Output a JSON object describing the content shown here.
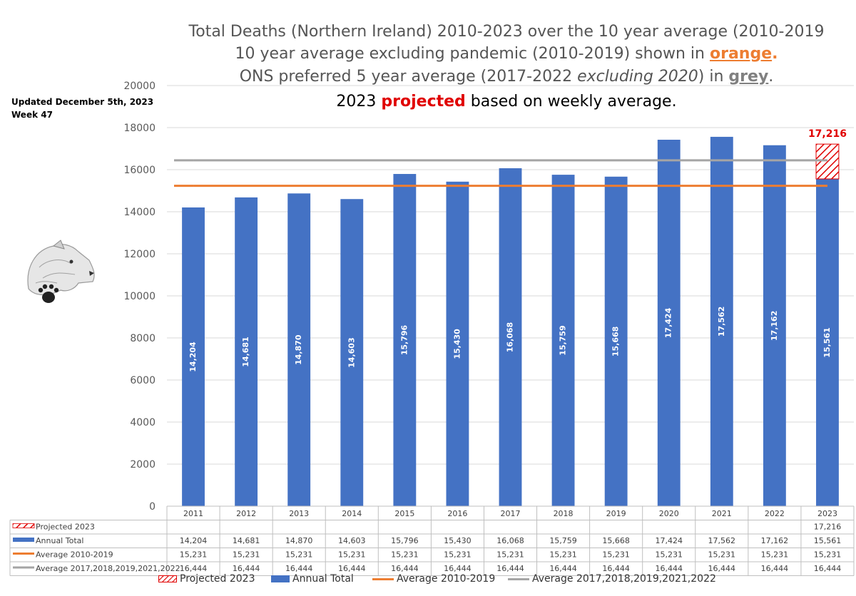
{
  "title": {
    "line1": "Total Deaths (Northern Ireland) 2010-2023 over the 10 year average (2010-2019",
    "line2_prefix": "10 year average excluding pandemic (2010-2019) shown in ",
    "line2_highlight": "orange",
    "line2_suffix": ".",
    "line3_prefix": "ONS preferred 5 year average (2017-2022 ",
    "line3_italic": "excluding 2020",
    "line3_mid": ") in ",
    "line3_highlight": "grey",
    "line3_suffix": ".",
    "line4_prefix": "2023 ",
    "line4_highlight": "projected",
    "line4_suffix": " based on weekly average."
  },
  "updated": {
    "line1": "Updated December 5th, 2023",
    "line2": "Week 47"
  },
  "colors": {
    "bar": "#4472c4",
    "orange_line": "#ed7d31",
    "grey_line": "#a5a5a5",
    "projected": "#e00000"
  },
  "chart_data": {
    "type": "bar",
    "categories": [
      "2011",
      "2012",
      "2013",
      "2014",
      "2015",
      "2016",
      "2017",
      "2018",
      "2019",
      "2020",
      "2021",
      "2022",
      "2023"
    ],
    "series": [
      {
        "name": "Projected 2023",
        "values": [
          null,
          null,
          null,
          null,
          null,
          null,
          null,
          null,
          null,
          null,
          null,
          null,
          17216
        ],
        "labels": [
          "",
          "",
          "",
          "",
          "",
          "",
          "",
          "",
          "",
          "",
          "",
          "",
          "17,216"
        ]
      },
      {
        "name": "Annual Total",
        "values": [
          14204,
          14681,
          14870,
          14603,
          15796,
          15430,
          16068,
          15759,
          15668,
          17424,
          17562,
          17162,
          15561
        ],
        "labels": [
          "14,204",
          "14,681",
          "14,870",
          "14,603",
          "15,796",
          "15,430",
          "16,068",
          "15,759",
          "15,668",
          "17,424",
          "17,562",
          "17,162",
          "15,561"
        ]
      },
      {
        "name": "Average 2010-2019",
        "values": [
          15231,
          15231,
          15231,
          15231,
          15231,
          15231,
          15231,
          15231,
          15231,
          15231,
          15231,
          15231,
          15231
        ],
        "labels": [
          "15,231",
          "15,231",
          "15,231",
          "15,231",
          "15,231",
          "15,231",
          "15,231",
          "15,231",
          "15,231",
          "15,231",
          "15,231",
          "15,231",
          "15,231"
        ]
      },
      {
        "name": "Average 2017,2018,2019,2021,2022",
        "values": [
          16444,
          16444,
          16444,
          16444,
          16444,
          16444,
          16444,
          16444,
          16444,
          16444,
          16444,
          16444,
          16444
        ],
        "labels": [
          "16,444",
          "16,444",
          "16,444",
          "16,444",
          "16,444",
          "16,444",
          "16,444",
          "16,444",
          "16,444",
          "16,444",
          "16,444",
          "16,444",
          "16,444"
        ]
      }
    ],
    "projected_label": "17,216",
    "ylim": [
      0,
      20000
    ],
    "yticks": [
      "0",
      "2000",
      "4000",
      "6000",
      "8000",
      "10000",
      "12000",
      "14000",
      "16000",
      "18000",
      "20000"
    ],
    "grid": true,
    "data_table": true,
    "legend_position": "bottom"
  }
}
